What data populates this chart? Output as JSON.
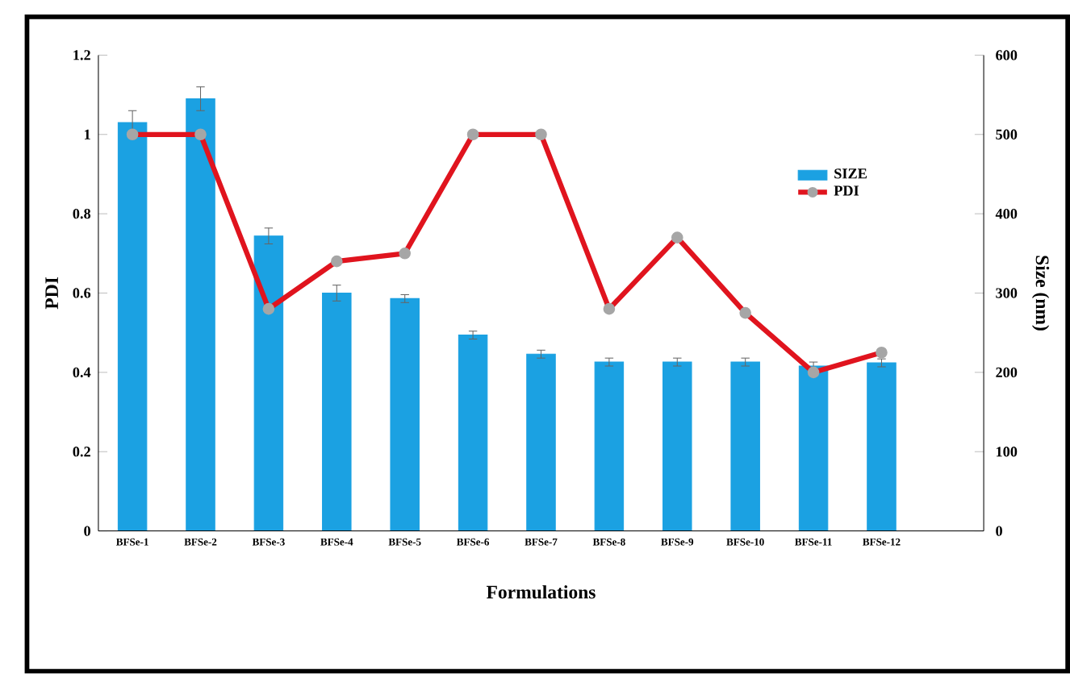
{
  "chart_data": {
    "type": "bar",
    "xlabel": "Formulations",
    "ylabel": "PDI",
    "y2label": "Size (nm)",
    "categories": [
      "BFSe-1",
      "BFSe-2",
      "BFSe-3",
      "BFSe-4",
      "BFSe-5",
      "BFSe-6",
      "BFSe-7",
      "BFSe-8",
      "BFSe-9",
      "BFSe-10",
      "BFSe-11",
      "BFSe-12"
    ],
    "series": [
      {
        "name": "SIZE",
        "axis": "y2",
        "color": "#1ba1e2",
        "values": [
          515,
          545,
          372,
          300,
          293,
          247,
          223,
          213,
          213,
          213,
          208,
          212
        ],
        "errors": [
          15,
          15,
          10,
          10,
          5,
          5,
          5,
          5,
          5,
          5,
          5,
          5
        ]
      },
      {
        "name": "PDI",
        "type": "line",
        "color": "#e0141e",
        "values": [
          1.0,
          1.0,
          0.56,
          0.68,
          0.7,
          1.0,
          1.0,
          0.56,
          0.74,
          0.55,
          0.4,
          0.45
        ]
      }
    ],
    "ylim": [
      0,
      1.2
    ],
    "yticks": [
      0,
      0.2,
      0.4,
      0.6,
      0.8,
      1,
      1.2
    ],
    "y2lim": [
      0,
      600
    ],
    "y2ticks": [
      0,
      100,
      200,
      300,
      400,
      500,
      600
    ],
    "legend": "top right",
    "marker": "circle",
    "line_style": "solid",
    "grid": false
  }
}
